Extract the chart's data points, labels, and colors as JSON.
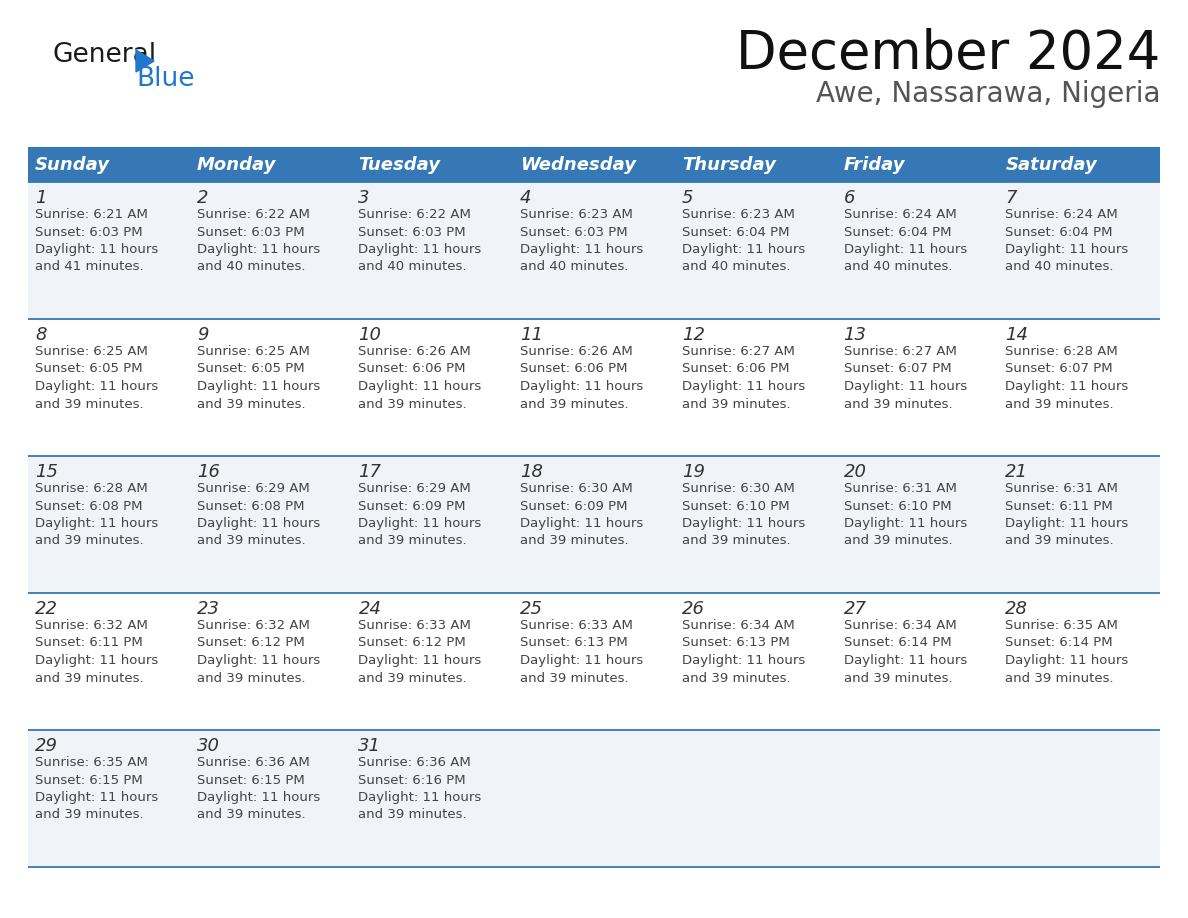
{
  "title": "December 2024",
  "subtitle": "Awe, Nassarawa, Nigeria",
  "header_bg_color": "#3578b5",
  "header_text_color": "#ffffff",
  "cell_bg_color_odd": "#f0f4f8",
  "cell_bg_color_even": "#ffffff",
  "cell_text_color": "#444444",
  "day_number_color": "#333333",
  "border_color": "#3578b5",
  "days_of_week": [
    "Sunday",
    "Monday",
    "Tuesday",
    "Wednesday",
    "Thursday",
    "Friday",
    "Saturday"
  ],
  "weeks": [
    [
      {
        "day": 1,
        "sunrise": "6:21 AM",
        "sunset": "6:03 PM",
        "daylight_line1": "Daylight: 11 hours",
        "daylight_line2": "and 41 minutes."
      },
      {
        "day": 2,
        "sunrise": "6:22 AM",
        "sunset": "6:03 PM",
        "daylight_line1": "Daylight: 11 hours",
        "daylight_line2": "and 40 minutes."
      },
      {
        "day": 3,
        "sunrise": "6:22 AM",
        "sunset": "6:03 PM",
        "daylight_line1": "Daylight: 11 hours",
        "daylight_line2": "and 40 minutes."
      },
      {
        "day": 4,
        "sunrise": "6:23 AM",
        "sunset": "6:03 PM",
        "daylight_line1": "Daylight: 11 hours",
        "daylight_line2": "and 40 minutes."
      },
      {
        "day": 5,
        "sunrise": "6:23 AM",
        "sunset": "6:04 PM",
        "daylight_line1": "Daylight: 11 hours",
        "daylight_line2": "and 40 minutes."
      },
      {
        "day": 6,
        "sunrise": "6:24 AM",
        "sunset": "6:04 PM",
        "daylight_line1": "Daylight: 11 hours",
        "daylight_line2": "and 40 minutes."
      },
      {
        "day": 7,
        "sunrise": "6:24 AM",
        "sunset": "6:04 PM",
        "daylight_line1": "Daylight: 11 hours",
        "daylight_line2": "and 40 minutes."
      }
    ],
    [
      {
        "day": 8,
        "sunrise": "6:25 AM",
        "sunset": "6:05 PM",
        "daylight_line1": "Daylight: 11 hours",
        "daylight_line2": "and 39 minutes."
      },
      {
        "day": 9,
        "sunrise": "6:25 AM",
        "sunset": "6:05 PM",
        "daylight_line1": "Daylight: 11 hours",
        "daylight_line2": "and 39 minutes."
      },
      {
        "day": 10,
        "sunrise": "6:26 AM",
        "sunset": "6:06 PM",
        "daylight_line1": "Daylight: 11 hours",
        "daylight_line2": "and 39 minutes."
      },
      {
        "day": 11,
        "sunrise": "6:26 AM",
        "sunset": "6:06 PM",
        "daylight_line1": "Daylight: 11 hours",
        "daylight_line2": "and 39 minutes."
      },
      {
        "day": 12,
        "sunrise": "6:27 AM",
        "sunset": "6:06 PM",
        "daylight_line1": "Daylight: 11 hours",
        "daylight_line2": "and 39 minutes."
      },
      {
        "day": 13,
        "sunrise": "6:27 AM",
        "sunset": "6:07 PM",
        "daylight_line1": "Daylight: 11 hours",
        "daylight_line2": "and 39 minutes."
      },
      {
        "day": 14,
        "sunrise": "6:28 AM",
        "sunset": "6:07 PM",
        "daylight_line1": "Daylight: 11 hours",
        "daylight_line2": "and 39 minutes."
      }
    ],
    [
      {
        "day": 15,
        "sunrise": "6:28 AM",
        "sunset": "6:08 PM",
        "daylight_line1": "Daylight: 11 hours",
        "daylight_line2": "and 39 minutes."
      },
      {
        "day": 16,
        "sunrise": "6:29 AM",
        "sunset": "6:08 PM",
        "daylight_line1": "Daylight: 11 hours",
        "daylight_line2": "and 39 minutes."
      },
      {
        "day": 17,
        "sunrise": "6:29 AM",
        "sunset": "6:09 PM",
        "daylight_line1": "Daylight: 11 hours",
        "daylight_line2": "and 39 minutes."
      },
      {
        "day": 18,
        "sunrise": "6:30 AM",
        "sunset": "6:09 PM",
        "daylight_line1": "Daylight: 11 hours",
        "daylight_line2": "and 39 minutes."
      },
      {
        "day": 19,
        "sunrise": "6:30 AM",
        "sunset": "6:10 PM",
        "daylight_line1": "Daylight: 11 hours",
        "daylight_line2": "and 39 minutes."
      },
      {
        "day": 20,
        "sunrise": "6:31 AM",
        "sunset": "6:10 PM",
        "daylight_line1": "Daylight: 11 hours",
        "daylight_line2": "and 39 minutes."
      },
      {
        "day": 21,
        "sunrise": "6:31 AM",
        "sunset": "6:11 PM",
        "daylight_line1": "Daylight: 11 hours",
        "daylight_line2": "and 39 minutes."
      }
    ],
    [
      {
        "day": 22,
        "sunrise": "6:32 AM",
        "sunset": "6:11 PM",
        "daylight_line1": "Daylight: 11 hours",
        "daylight_line2": "and 39 minutes."
      },
      {
        "day": 23,
        "sunrise": "6:32 AM",
        "sunset": "6:12 PM",
        "daylight_line1": "Daylight: 11 hours",
        "daylight_line2": "and 39 minutes."
      },
      {
        "day": 24,
        "sunrise": "6:33 AM",
        "sunset": "6:12 PM",
        "daylight_line1": "Daylight: 11 hours",
        "daylight_line2": "and 39 minutes."
      },
      {
        "day": 25,
        "sunrise": "6:33 AM",
        "sunset": "6:13 PM",
        "daylight_line1": "Daylight: 11 hours",
        "daylight_line2": "and 39 minutes."
      },
      {
        "day": 26,
        "sunrise": "6:34 AM",
        "sunset": "6:13 PM",
        "daylight_line1": "Daylight: 11 hours",
        "daylight_line2": "and 39 minutes."
      },
      {
        "day": 27,
        "sunrise": "6:34 AM",
        "sunset": "6:14 PM",
        "daylight_line1": "Daylight: 11 hours",
        "daylight_line2": "and 39 minutes."
      },
      {
        "day": 28,
        "sunrise": "6:35 AM",
        "sunset": "6:14 PM",
        "daylight_line1": "Daylight: 11 hours",
        "daylight_line2": "and 39 minutes."
      }
    ],
    [
      {
        "day": 29,
        "sunrise": "6:35 AM",
        "sunset": "6:15 PM",
        "daylight_line1": "Daylight: 11 hours",
        "daylight_line2": "and 39 minutes."
      },
      {
        "day": 30,
        "sunrise": "6:36 AM",
        "sunset": "6:15 PM",
        "daylight_line1": "Daylight: 11 hours",
        "daylight_line2": "and 39 minutes."
      },
      {
        "day": 31,
        "sunrise": "6:36 AM",
        "sunset": "6:16 PM",
        "daylight_line1": "Daylight: 11 hours",
        "daylight_line2": "and 39 minutes."
      },
      null,
      null,
      null,
      null
    ]
  ],
  "logo_color_general": "#1a1a1a",
  "logo_color_blue": "#2277cc",
  "logo_triangle_color": "#2277cc",
  "title_fontsize": 38,
  "subtitle_fontsize": 20,
  "header_fontsize": 13,
  "day_num_fontsize": 13,
  "cell_text_fontsize": 9.5
}
